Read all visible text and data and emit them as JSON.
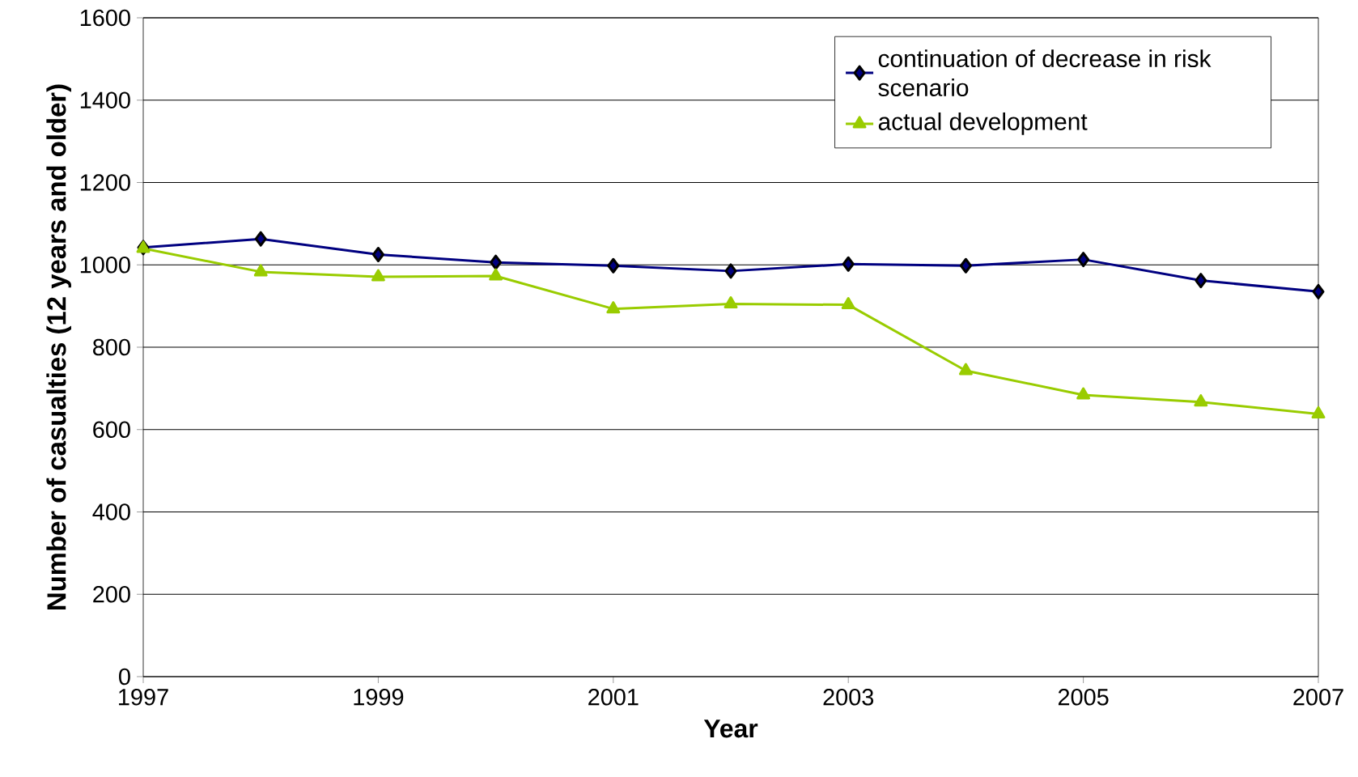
{
  "chart_data": {
    "type": "line",
    "xlabel": "Year",
    "ylabel": "Number of casualties (12 years and older)",
    "x": [
      1997,
      1998,
      1999,
      2000,
      2001,
      2002,
      2003,
      2004,
      2005,
      2006,
      2007
    ],
    "series": [
      {
        "name": "continuation of decrease in risk scenario",
        "color": "#000080",
        "marker": "diamond",
        "values": [
          1042,
          1063,
          1025,
          1006,
          998,
          985,
          1002,
          998,
          1013,
          962,
          935
        ]
      },
      {
        "name": "actual development",
        "color": "#99cc00",
        "marker": "triangle",
        "values": [
          1040,
          983,
          971,
          973,
          893,
          905,
          903,
          743,
          684,
          667,
          638
        ]
      }
    ],
    "xlim": [
      1997,
      2007
    ],
    "xticks": [
      1997,
      1999,
      2001,
      2003,
      2005,
      2007
    ],
    "ylim": [
      0,
      1600
    ],
    "yticks": [
      0,
      200,
      400,
      600,
      800,
      1000,
      1200,
      1400,
      1600
    ],
    "grid": "y",
    "legend": "top right",
    "line_style": "solid"
  }
}
